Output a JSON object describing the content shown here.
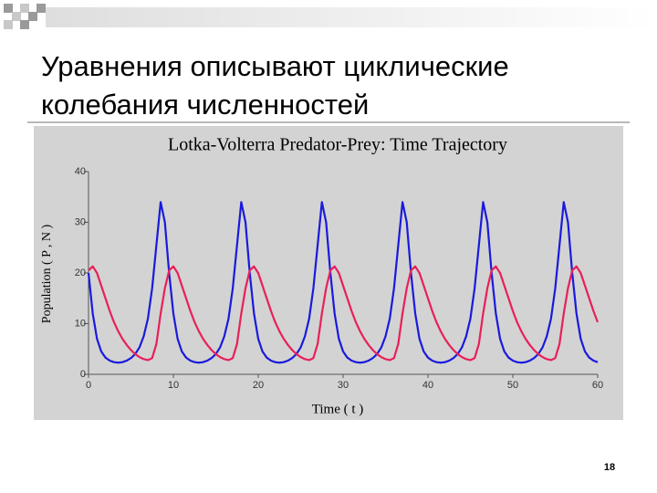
{
  "slide": {
    "title_lines": [
      "Уравнения описывают циклические",
      "колебания численностей"
    ],
    "page_number": "18"
  },
  "chart_data": {
    "type": "line",
    "title": "Lotka-Volterra Predator-Prey: Time Trajectory",
    "x_label": "Time ( t )",
    "y_label": "Population ( P , N )",
    "x": [
      0,
      0.5,
      1,
      1.5,
      2,
      2.5,
      3,
      3.5,
      4,
      4.5,
      5,
      5.5,
      6,
      6.5,
      7,
      7.5,
      8,
      8.5,
      9,
      9.5,
      10,
      10.5,
      11,
      11.5,
      12,
      12.5,
      13,
      13.5,
      14,
      14.5,
      15,
      15.5,
      16,
      16.5,
      17,
      17.5,
      18,
      18.5,
      19,
      19.5,
      20,
      20.5,
      21,
      21.5,
      22,
      22.5,
      23,
      23.5,
      24,
      24.5,
      25,
      25.5,
      26,
      26.5,
      27,
      27.5,
      28,
      28.5,
      29,
      29.5,
      30,
      30.5,
      31,
      31.5,
      32,
      32.5,
      33,
      33.5,
      34,
      34.5,
      35,
      35.5,
      36,
      36.5,
      37,
      37.5,
      38,
      38.5,
      39,
      39.5,
      40,
      40.5,
      41,
      41.5,
      42,
      42.5,
      43,
      43.5,
      44,
      44.5,
      45,
      45.5,
      46,
      46.5,
      47,
      47.5,
      48,
      48.5,
      49,
      49.5,
      50,
      50.5,
      51,
      51.5,
      52,
      52.5,
      53,
      53.5,
      54,
      54.5,
      55,
      55.5,
      56,
      56.5,
      57,
      57.5,
      58,
      58.5,
      59,
      59.5,
      60
    ],
    "series": [
      {
        "color": "#1a1adc",
        "values": [
          20,
          12,
          7,
          4.5,
          3.3,
          2.7,
          2.4,
          2.3,
          2.4,
          2.7,
          3.2,
          4,
          5.3,
          7.5,
          11,
          17,
          25.5,
          34,
          30,
          20,
          12,
          7,
          4.5,
          3.3,
          2.7,
          2.4,
          2.3,
          2.4,
          2.7,
          3.2,
          4,
          5.3,
          7.5,
          11,
          17,
          25.5,
          34,
          30,
          20,
          12,
          7,
          4.5,
          3.3,
          2.7,
          2.4,
          2.3,
          2.4,
          2.7,
          3.2,
          4,
          5.3,
          7.5,
          11,
          17,
          25.5,
          34,
          30,
          20,
          12,
          7,
          4.5,
          3.3,
          2.7,
          2.4,
          2.3,
          2.4,
          2.7,
          3.2,
          4,
          5.3,
          7.5,
          11,
          17,
          25.5,
          34,
          30,
          20,
          12,
          7,
          4.5,
          3.3,
          2.7,
          2.4,
          2.3,
          2.4,
          2.7,
          3.2,
          4,
          5.3,
          7.5,
          11,
          17,
          25.5,
          34,
          30,
          20,
          12,
          7,
          4.5,
          3.3,
          2.7,
          2.4,
          2.3,
          2.4,
          2.7,
          3.2,
          4,
          5.3,
          7.5,
          11,
          17,
          25.5,
          34,
          30,
          20,
          12,
          7,
          4.5,
          3.3,
          2.7,
          2.4
        ]
      },
      {
        "color": "#e8205a",
        "values": [
          20.5,
          21.3,
          20,
          17.5,
          15,
          12.5,
          10.3,
          8.5,
          7,
          5.8,
          4.8,
          4,
          3.4,
          3,
          2.8,
          3.2,
          6,
          12,
          17,
          20.5,
          21.3,
          20,
          17.5,
          15,
          12.5,
          10.3,
          8.5,
          7,
          5.8,
          4.8,
          4,
          3.4,
          3,
          2.8,
          3.2,
          6,
          12,
          17,
          20.5,
          21.3,
          20,
          17.5,
          15,
          12.5,
          10.3,
          8.5,
          7,
          5.8,
          4.8,
          4,
          3.4,
          3,
          2.8,
          3.2,
          6,
          12,
          17,
          20.5,
          21.3,
          20,
          17.5,
          15,
          12.5,
          10.3,
          8.5,
          7,
          5.8,
          4.8,
          4,
          3.4,
          3,
          2.8,
          3.2,
          6,
          12,
          17,
          20.5,
          21.3,
          20,
          17.5,
          15,
          12.5,
          10.3,
          8.5,
          7,
          5.8,
          4.8,
          4,
          3.4,
          3,
          2.8,
          3.2,
          6,
          12,
          17,
          20.5,
          21.3,
          20,
          17.5,
          15,
          12.5,
          10.3,
          8.5,
          7,
          5.8,
          4.8,
          4,
          3.4,
          3,
          2.8,
          3.2,
          6,
          12,
          17,
          20.5,
          21.3,
          20,
          17.5,
          15,
          12.5,
          10.3
        ]
      }
    ],
    "xlim": [
      0,
      60
    ],
    "xticks": [
      0,
      10,
      20,
      30,
      40,
      50,
      60
    ],
    "ylim": [
      0,
      40
    ],
    "yticks": [
      0,
      10,
      20,
      30,
      40
    ],
    "background": "#d3d3d3"
  }
}
